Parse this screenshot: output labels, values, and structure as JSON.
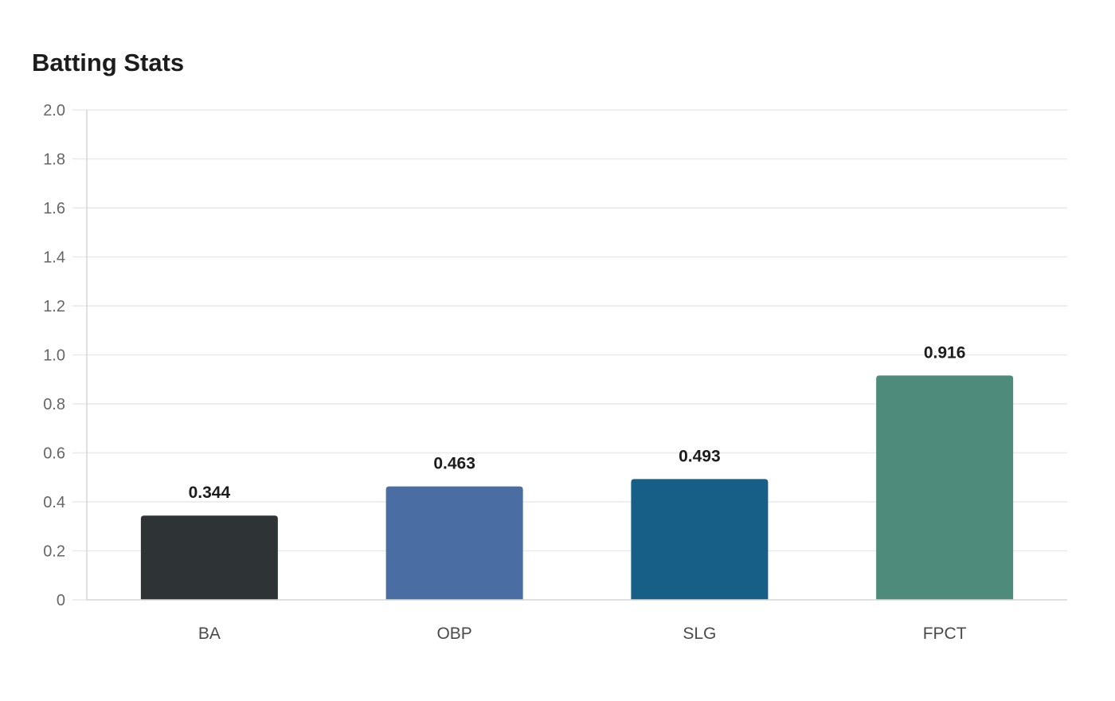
{
  "chart_data": {
    "type": "bar",
    "title": "Batting Stats",
    "xlabel": "",
    "ylabel": "",
    "categories": [
      "BA",
      "OBP",
      "SLG",
      "FPCT"
    ],
    "values": [
      0.344,
      0.463,
      0.493,
      0.916
    ],
    "value_labels": [
      "0.344",
      "0.463",
      "0.493",
      "0.916"
    ],
    "colors": [
      "#2e3436",
      "#4a6ea3",
      "#185f87",
      "#4e8b7a"
    ],
    "ylim": [
      0,
      2.0
    ],
    "yticks": [
      "0",
      "0.2",
      "0.4",
      "0.6",
      "0.8",
      "1.0",
      "1.2",
      "1.4",
      "1.6",
      "1.8",
      "2.0"
    ],
    "grid": true,
    "legend": "none"
  }
}
